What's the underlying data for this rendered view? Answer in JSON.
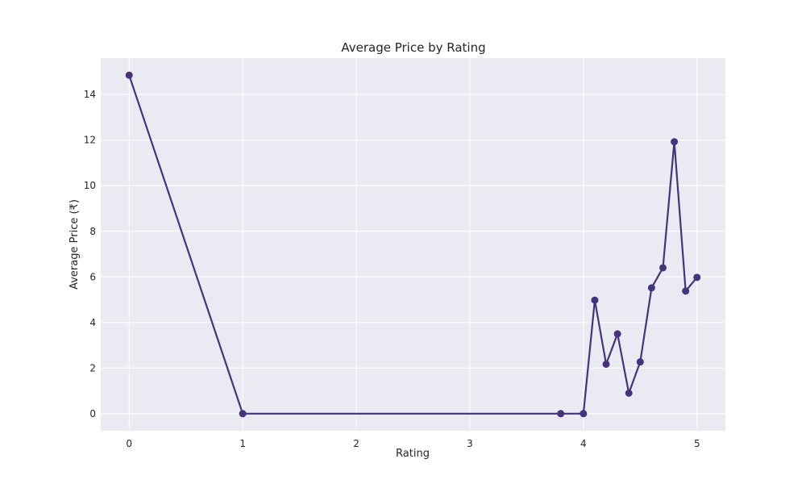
{
  "chart_data": {
    "type": "line",
    "title": "Average Price by Rating",
    "xlabel": "Rating",
    "ylabel": "Average Price (₹)",
    "xlim": [
      -0.25,
      5.25
    ],
    "ylim": [
      -0.75,
      15.6
    ],
    "xticks": [
      0,
      1,
      2,
      3,
      4,
      5
    ],
    "yticks": [
      0,
      2,
      4,
      6,
      8,
      10,
      12,
      14
    ],
    "grid": true,
    "colors": {
      "series": "#45337d",
      "background": "#eaeaf2",
      "grid": "#ffffff"
    },
    "series": [
      {
        "x": [
          0.0,
          1.0,
          3.8,
          4.0,
          4.1,
          4.2,
          4.3,
          4.4,
          4.5,
          4.6,
          4.7,
          4.8,
          4.9,
          5.0
        ],
        "y": [
          14.85,
          0.0,
          0.0,
          0.0,
          4.98,
          2.17,
          3.5,
          0.9,
          2.27,
          5.52,
          6.4,
          11.93,
          5.38,
          5.98
        ]
      }
    ]
  }
}
